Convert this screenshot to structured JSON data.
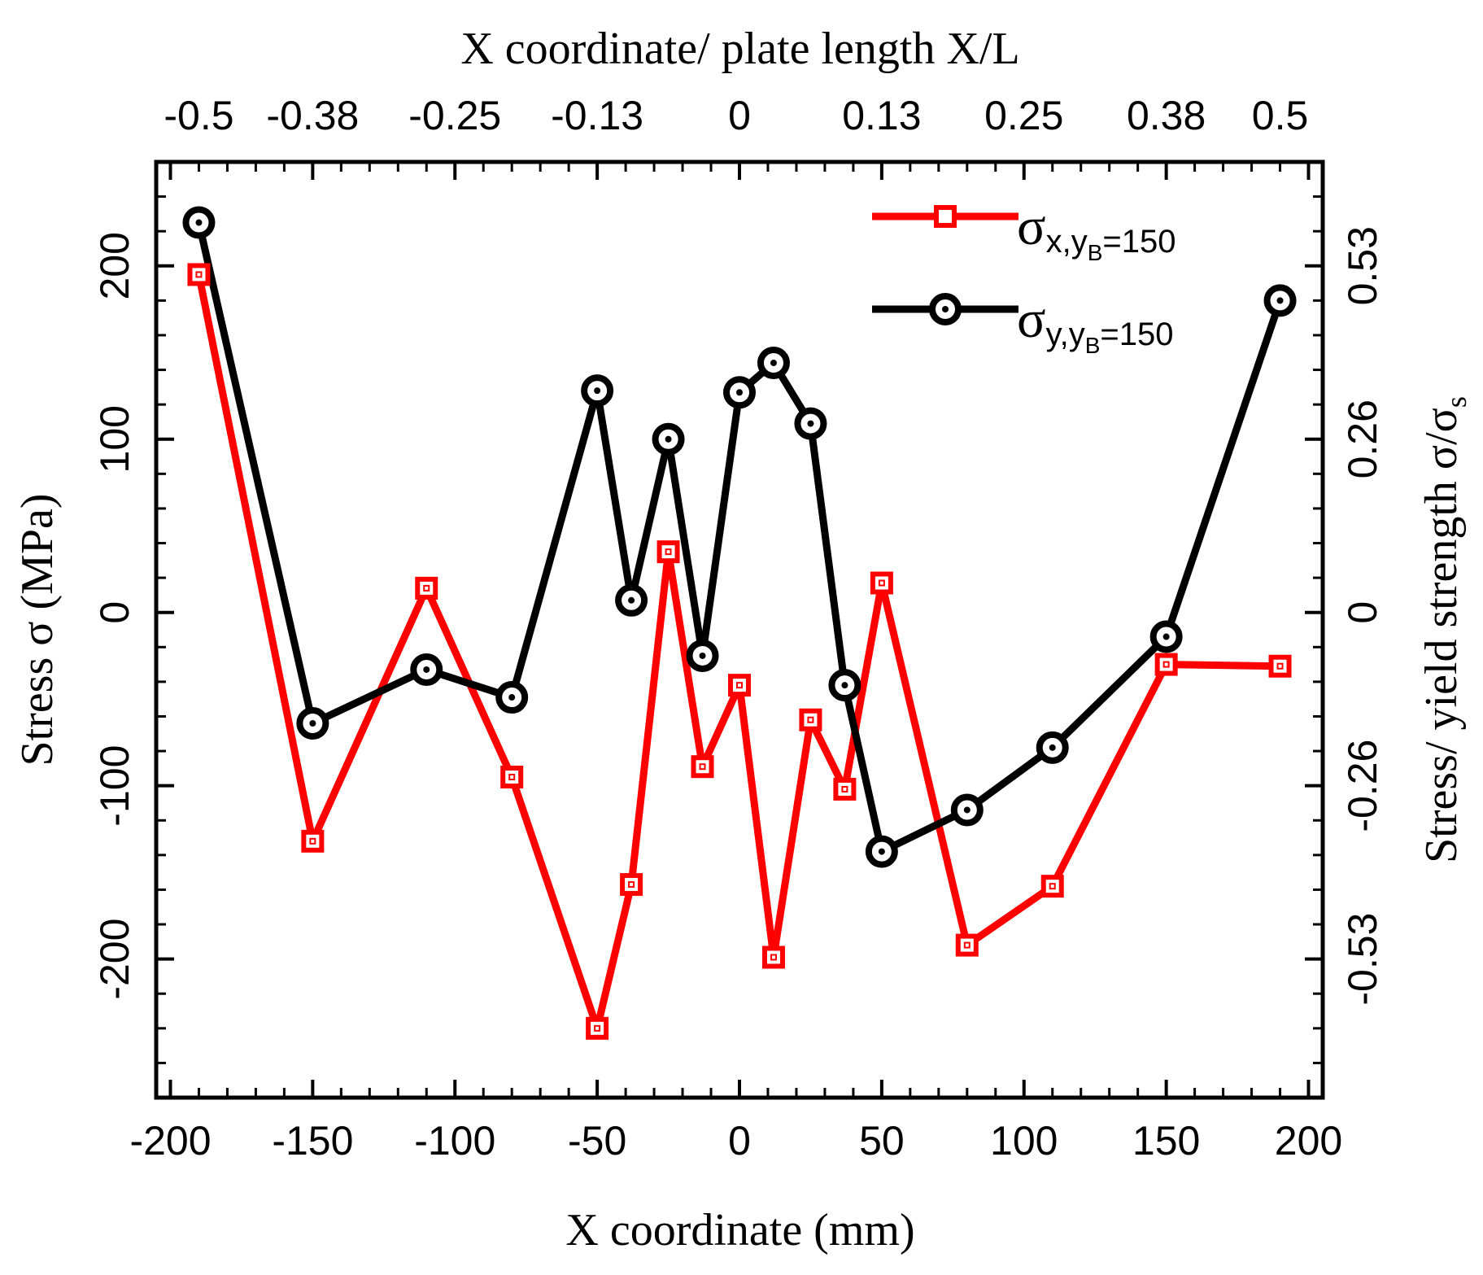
{
  "chart_data": {
    "type": "line",
    "xlabel": "X coordinate (mm)",
    "ylabel": "Stress σ (MPa)",
    "x2label": "X coordinate/ plate length X/L",
    "y2label": "Stress/ yield strength σ/σs",
    "y2label_parts": {
      "main": "Stress/ yield strength σ/σ",
      "sub": "s"
    },
    "xlim": [
      -205,
      205
    ],
    "ylim": [
      -280,
      260
    ],
    "x_ticks": [
      -200,
      -150,
      -100,
      -50,
      0,
      50,
      100,
      150,
      200
    ],
    "x_tick_labels": [
      "-200",
      "-150",
      "-100",
      "-50",
      "0",
      "50",
      "100",
      "150",
      "200"
    ],
    "y_ticks": [
      -200,
      -100,
      0,
      100,
      200
    ],
    "y_tick_labels": [
      "-200",
      "-100",
      "0",
      "100",
      "200"
    ],
    "x2_ticks": [
      -190,
      -150,
      -100,
      -50,
      0,
      50,
      100,
      150,
      190
    ],
    "x2_tick_labels": [
      "-0.5",
      "-0.38",
      "-0.25",
      "-0.13",
      "0",
      "0.13",
      "0.25",
      "0.38",
      "0.5"
    ],
    "y2_ticks": [
      -200,
      -100,
      0,
      100,
      200
    ],
    "y2_tick_labels": [
      "-0.53",
      "-0.26",
      "0",
      "0.26",
      "0.53"
    ],
    "legend_position": "top-right",
    "series": [
      {
        "name": "σx,yB=150",
        "legend": {
          "main": "σ",
          "sub": "x,y",
          "subsub": "B",
          "tail": "=150"
        },
        "color": "#ff0000",
        "marker": "square",
        "x": [
          -190,
          -150,
          -110,
          -80,
          -50,
          -38,
          -25,
          -13,
          0,
          12,
          25,
          37,
          50,
          80,
          110,
          150,
          190
        ],
        "y": [
          195,
          -132,
          14,
          -95,
          -240,
          -157,
          35,
          -89,
          -42,
          -199,
          -62,
          -102,
          17,
          -192,
          -158,
          -30,
          -31
        ]
      },
      {
        "name": "σy,yB=150",
        "legend": {
          "main": "σ",
          "sub": "y,y",
          "subsub": "B",
          "tail": "=150"
        },
        "color": "#000000",
        "marker": "circle",
        "x": [
          -190,
          -150,
          -110,
          -80,
          -50,
          -38,
          -25,
          -13,
          0,
          12,
          25,
          37,
          50,
          80,
          110,
          150,
          190
        ],
        "y": [
          225,
          -64,
          -33,
          -49,
          128,
          7,
          100,
          -25,
          127,
          144,
          109,
          -42,
          -138,
          -114,
          -78,
          -14,
          180
        ]
      }
    ]
  }
}
